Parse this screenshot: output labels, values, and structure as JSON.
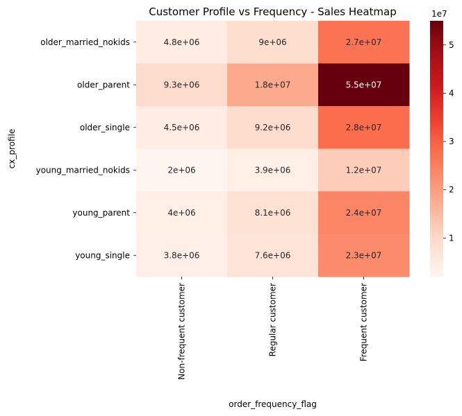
{
  "chart_data": {
    "type": "heatmap",
    "title": "Customer Profile vs Frequency - Sales Heatmap",
    "xlabel": "order_frequency_flag",
    "ylabel": "cx_profile",
    "x_categories": [
      "Non-frequent customer",
      "Regular customer",
      "Frequent customer"
    ],
    "y_categories": [
      "older_married_nokids",
      "older_parent",
      "older_single",
      "young_married_nokids",
      "young_parent",
      "young_single"
    ],
    "values": [
      [
        4800000,
        9000000,
        27000000
      ],
      [
        9300000,
        18000000,
        55000000
      ],
      [
        4500000,
        9200000,
        28000000
      ],
      [
        2000000,
        3900000,
        12000000
      ],
      [
        4000000,
        8100000,
        24000000
      ],
      [
        3800000,
        7600000,
        23000000
      ]
    ],
    "value_labels": [
      [
        "4.8e+06",
        "9e+06",
        "2.7e+07"
      ],
      [
        "9.3e+06",
        "1.8e+07",
        "5.5e+07"
      ],
      [
        "4.5e+06",
        "9.2e+06",
        "2.8e+07"
      ],
      [
        "2e+06",
        "3.9e+06",
        "1.2e+07"
      ],
      [
        "4e+06",
        "8.1e+06",
        "2.4e+07"
      ],
      [
        "3.8e+06",
        "7.6e+06",
        "2.3e+07"
      ]
    ],
    "colormap": "Reds",
    "colorbar": {
      "vmin": 2000000,
      "vmax": 55000000,
      "ticks": [
        10000000,
        20000000,
        30000000,
        40000000,
        50000000
      ],
      "tick_labels": [
        "1",
        "2",
        "3",
        "4",
        "5"
      ],
      "offset_label": "1e7"
    },
    "grid": false
  }
}
